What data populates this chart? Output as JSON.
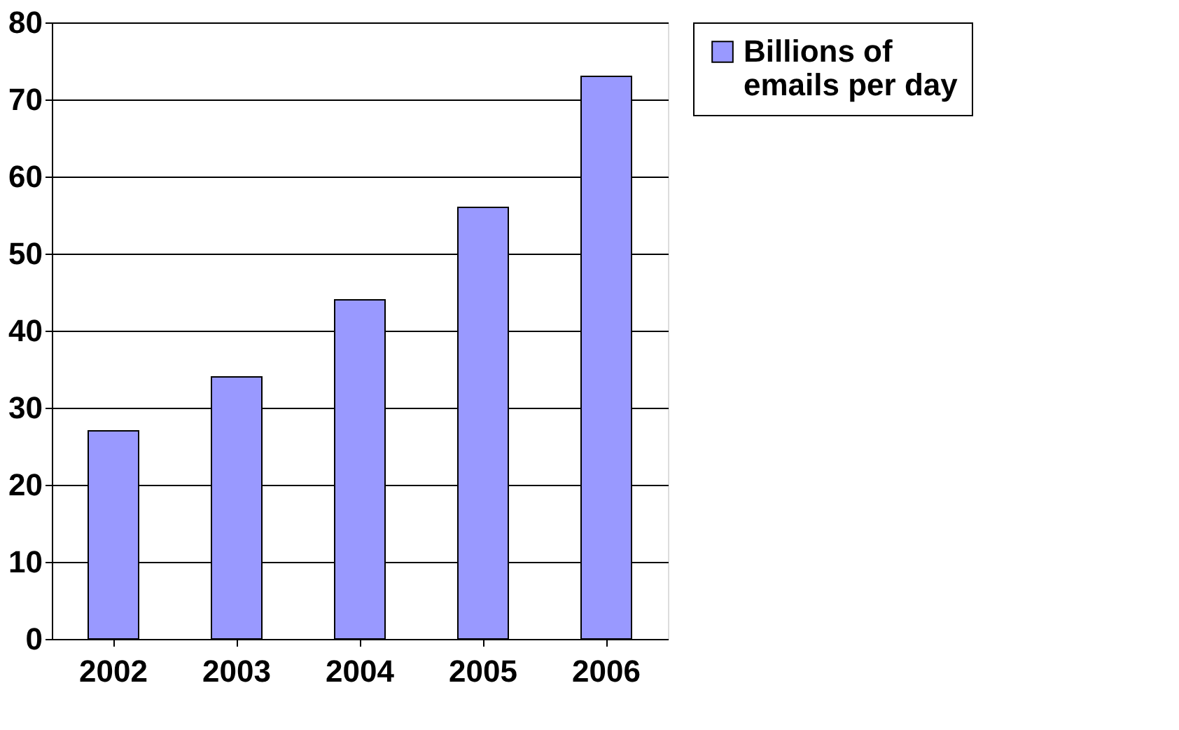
{
  "chart_data": {
    "type": "bar",
    "categories": [
      "2002",
      "2003",
      "2004",
      "2005",
      "2006"
    ],
    "series": [
      {
        "name": "Billions of emails per day",
        "color": "#9999ff",
        "values": [
          27,
          34,
          44,
          56,
          73
        ]
      }
    ],
    "ylim": [
      0,
      80
    ],
    "yticks": [
      0,
      10,
      20,
      30,
      40,
      50,
      60,
      70,
      80
    ],
    "grid": "y",
    "legend": "right"
  }
}
